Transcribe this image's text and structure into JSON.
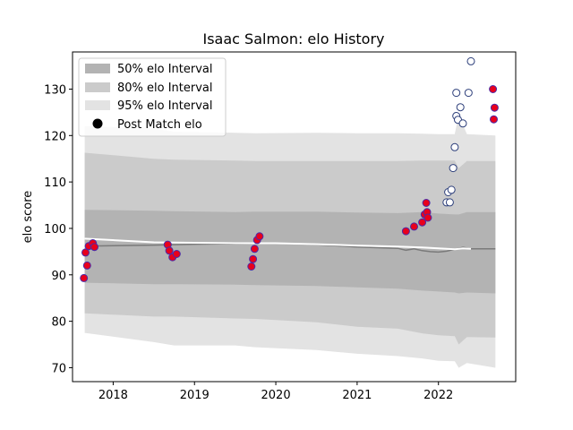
{
  "chart_data": {
    "type": "scatter",
    "title": "Isaac Salmon: elo History",
    "xlabel": "",
    "ylabel": "elo score",
    "xlim": [
      2017.5,
      2022.95
    ],
    "ylim": [
      67,
      138
    ],
    "xticks": [
      2018,
      2019,
      2020,
      2021,
      2022
    ],
    "yticks": [
      70,
      80,
      90,
      100,
      110,
      120,
      130
    ],
    "legend": {
      "position": "top-left",
      "entries": [
        {
          "label": "50% elo Interval",
          "color": "#b3b3b3"
        },
        {
          "label": "80% elo Interval",
          "color": "#cbcbcb"
        },
        {
          "label": "95% elo Interval",
          "color": "#e3e3e3"
        },
        {
          "label": "Post Match elo",
          "color": "#000000"
        }
      ]
    },
    "bands": {
      "x": [
        2017.65,
        2018.5,
        2018.75,
        2019.5,
        2019.75,
        2020.5,
        2021.0,
        2021.5,
        2021.8,
        2022.0,
        2022.2,
        2022.25,
        2022.35,
        2022.7
      ],
      "band95": {
        "upper": [
          122,
          121.5,
          120.8,
          120.6,
          120.5,
          120.6,
          120.5,
          120.5,
          120.4,
          120.3,
          120.3,
          124.5,
          120.3,
          120.0
        ],
        "lower": [
          77.5,
          75.5,
          74.8,
          74.8,
          74.4,
          73.8,
          73.0,
          72.5,
          72.0,
          71.5,
          71.4,
          70.0,
          71.0,
          70.0
        ]
      },
      "band80": {
        "upper": [
          116.3,
          115.0,
          114.8,
          114.6,
          114.5,
          114.5,
          114.5,
          114.5,
          114.6,
          114.6,
          114.6,
          113.0,
          114.5,
          114.5
        ],
        "lower": [
          81.7,
          81.0,
          81.0,
          80.6,
          80.5,
          79.8,
          78.8,
          78.4,
          77.4,
          77.0,
          76.8,
          75.0,
          76.6,
          76.5
        ],
        "color": "#cbcbcb"
      },
      "band50": {
        "upper": [
          104.0,
          103.8,
          103.7,
          103.5,
          103.6,
          103.6,
          103.4,
          103.3,
          103.5,
          103.2,
          103.0,
          103.0,
          103.5,
          103.5
        ],
        "lower": [
          88.3,
          88.0,
          88.0,
          87.9,
          87.8,
          87.6,
          87.3,
          87.0,
          86.6,
          86.4,
          86.2,
          86.0,
          86.2,
          86.0
        ]
      }
    },
    "mean_line": {
      "x": [
        2017.65,
        2018.5,
        2019.0,
        2019.5,
        2020.0,
        2020.5,
        2021.0,
        2021.5,
        2021.6,
        2021.7,
        2021.8,
        2021.9,
        2022.0,
        2022.1,
        2022.2,
        2022.3,
        2022.4,
        2022.7
      ],
      "y": [
        96.2,
        96.4,
        96.6,
        96.7,
        96.8,
        96.5,
        96.0,
        95.7,
        95.3,
        95.6,
        95.2,
        95.0,
        94.9,
        95.1,
        95.5,
        95.9,
        95.6,
        95.6
      ]
    },
    "white_line": {
      "x": [
        2017.65,
        2018.5,
        2019.0,
        2019.5,
        2020.0,
        2020.5,
        2021.0,
        2021.5,
        2021.8,
        2022.0,
        2022.2,
        2022.3,
        2022.4
      ],
      "y": [
        97.8,
        97.0,
        96.9,
        96.8,
        96.8,
        96.6,
        96.3,
        96.1,
        95.9,
        95.7,
        95.5,
        95.7,
        95.6
      ]
    },
    "series": [
      {
        "name": "Post Match elo",
        "marker": "red-filled",
        "points": [
          [
            2017.64,
            89.3
          ],
          [
            2017.66,
            94.8
          ],
          [
            2017.68,
            92.0
          ],
          [
            2017.7,
            96.2
          ],
          [
            2017.75,
            96.8
          ],
          [
            2017.77,
            96.0
          ],
          [
            2018.67,
            96.5
          ],
          [
            2018.69,
            95.2
          ],
          [
            2018.73,
            93.8
          ],
          [
            2018.78,
            94.5
          ],
          [
            2019.7,
            91.8
          ],
          [
            2019.72,
            93.4
          ],
          [
            2019.74,
            95.6
          ],
          [
            2019.77,
            97.5
          ],
          [
            2019.8,
            98.3
          ],
          [
            2021.6,
            99.4
          ],
          [
            2021.7,
            100.4
          ],
          [
            2021.8,
            101.3
          ],
          [
            2021.83,
            103.0
          ],
          [
            2021.85,
            105.5
          ],
          [
            2021.86,
            103.5
          ],
          [
            2021.87,
            102.3
          ],
          [
            2022.67,
            130.0
          ],
          [
            2022.69,
            126.0
          ],
          [
            2022.68,
            123.5
          ]
        ]
      },
      {
        "name": "",
        "marker": "white-open",
        "points": [
          [
            2022.1,
            105.6
          ],
          [
            2022.12,
            107.8
          ],
          [
            2022.14,
            105.6
          ],
          [
            2022.16,
            108.3
          ],
          [
            2022.18,
            113.0
          ],
          [
            2022.2,
            117.5
          ],
          [
            2022.22,
            124.2
          ],
          [
            2022.24,
            123.4
          ],
          [
            2022.27,
            126.1
          ],
          [
            2022.3,
            122.6
          ],
          [
            2022.22,
            129.2
          ],
          [
            2022.37,
            129.2
          ],
          [
            2022.4,
            136.0
          ]
        ]
      }
    ]
  }
}
